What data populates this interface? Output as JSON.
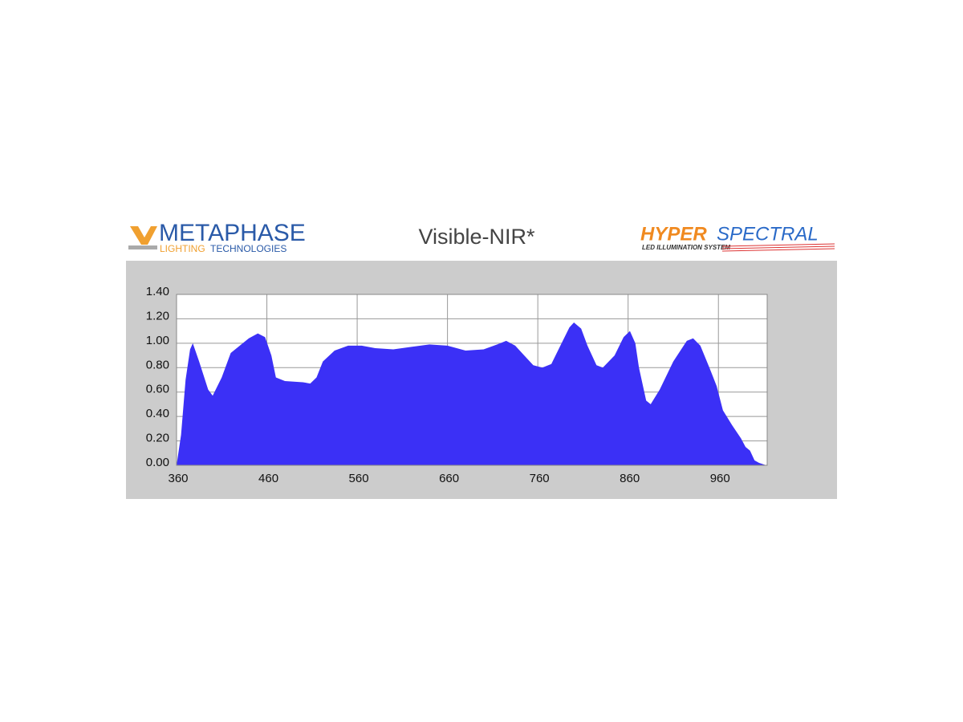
{
  "logos": {
    "left_main": "METAPHASE",
    "left_sub1": "LIGHTING",
    "left_sub2": "TECHNOLOGIES",
    "right_main1": "HYPER",
    "right_main2": "SPECTRAL",
    "right_sub": "LED ILLUMINATION SYSTEM"
  },
  "chart_data": {
    "type": "area",
    "title": "Visible-NIR*",
    "color": "#3b30f6",
    "grid": true,
    "x": [
      360,
      365,
      370,
      375,
      378,
      385,
      395,
      400,
      410,
      420,
      430,
      440,
      450,
      458,
      465,
      470,
      480,
      500,
      508,
      515,
      522,
      535,
      550,
      565,
      580,
      600,
      620,
      640,
      660,
      680,
      700,
      715,
      725,
      735,
      745,
      755,
      765,
      775,
      785,
      795,
      800,
      808,
      815,
      825,
      832,
      845,
      855,
      862,
      868,
      872,
      880,
      885,
      895,
      910,
      925,
      932,
      940,
      950,
      958,
      965,
      975,
      985,
      990,
      995,
      1000,
      1005,
      1013
    ],
    "values": [
      0,
      0.25,
      0.7,
      0.95,
      1.0,
      0.85,
      0.62,
      0.57,
      0.72,
      0.92,
      0.98,
      1.04,
      1.08,
      1.05,
      0.9,
      0.72,
      0.69,
      0.68,
      0.67,
      0.72,
      0.85,
      0.94,
      0.98,
      0.98,
      0.96,
      0.95,
      0.97,
      0.99,
      0.98,
      0.94,
      0.95,
      0.99,
      1.02,
      0.98,
      0.9,
      0.82,
      0.8,
      0.83,
      0.98,
      1.13,
      1.17,
      1.12,
      0.98,
      0.82,
      0.8,
      0.9,
      1.05,
      1.1,
      1.0,
      0.8,
      0.53,
      0.5,
      0.62,
      0.85,
      1.02,
      1.04,
      0.98,
      0.8,
      0.65,
      0.45,
      0.33,
      0.22,
      0.15,
      0.12,
      0.04,
      0.02,
      0
    ],
    "xlim": [
      360,
      1014
    ],
    "xticks": [
      360,
      460,
      560,
      660,
      760,
      860,
      960
    ],
    "ylim": [
      0,
      1.4
    ],
    "yticks": [
      {
        "value": 0,
        "label": "0.00"
      },
      {
        "value": 0.2,
        "label": "0.20"
      },
      {
        "value": 0.4,
        "label": "0.40"
      },
      {
        "value": 0.6,
        "label": "0.60"
      },
      {
        "value": 0.8,
        "label": "0.80"
      },
      {
        "value": 1.0,
        "label": "1.00"
      },
      {
        "value": 1.2,
        "label": "1.20"
      },
      {
        "value": 1.4,
        "label": "1.40"
      }
    ]
  }
}
